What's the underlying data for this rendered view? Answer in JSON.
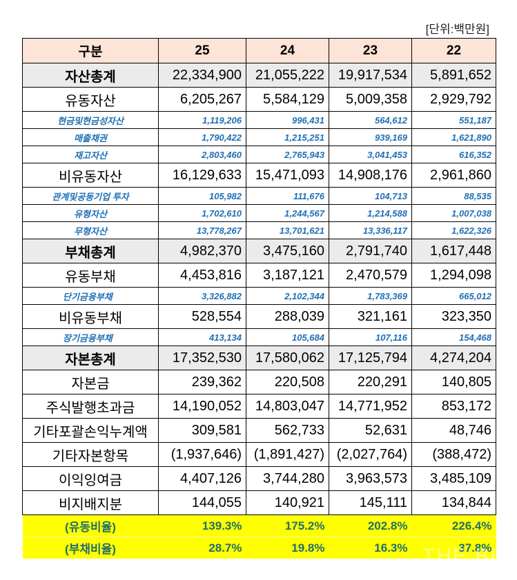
{
  "unit_label": "[단위:백만원]",
  "header": {
    "label": "구분",
    "years": [
      "25",
      "24",
      "23",
      "22"
    ]
  },
  "rows": [
    {
      "label": "자산총계",
      "values": [
        "22,334,900",
        "21,055,222",
        "19,917,534",
        "5,891,652"
      ]
    },
    {
      "label": "유동자산",
      "values": [
        "6,205,267",
        "5,584,129",
        "5,009,358",
        "2,929,792"
      ]
    },
    {
      "label": "현금및현금성자산",
      "values": [
        "1,119,206",
        "996,431",
        "564,612",
        "551,187"
      ]
    },
    {
      "label": "매출채권",
      "values": [
        "1,790,422",
        "1,215,251",
        "939,169",
        "1,621,890"
      ]
    },
    {
      "label": "재고자산",
      "values": [
        "2,803,460",
        "2,765,943",
        "3,041,453",
        "616,352"
      ]
    },
    {
      "label": "비유동자산",
      "values": [
        "16,129,633",
        "15,471,093",
        "14,908,176",
        "2,961,860"
      ]
    },
    {
      "label": "관계및공동기업 투자",
      "values": [
        "105,982",
        "111,676",
        "104,713",
        "88,535"
      ]
    },
    {
      "label": "유형자산",
      "values": [
        "1,702,610",
        "1,244,567",
        "1,214,588",
        "1,007,038"
      ]
    },
    {
      "label": "무형자산",
      "values": [
        "13,778,267",
        "13,701,621",
        "13,336,117",
        "1,622,326"
      ]
    },
    {
      "label": "부채총계",
      "values": [
        "4,982,370",
        "3,475,160",
        "2,791,740",
        "1,617,448"
      ]
    },
    {
      "label": "유동부채",
      "values": [
        "4,453,816",
        "3,187,121",
        "2,470,579",
        "1,294,098"
      ]
    },
    {
      "label": "단기금융부채",
      "values": [
        "3,326,882",
        "2,102,344",
        "1,783,369",
        "665,012"
      ]
    },
    {
      "label": "비유동부채",
      "values": [
        "528,554",
        "288,039",
        "321,161",
        "323,350"
      ]
    },
    {
      "label": "장기금융부채",
      "values": [
        "413,134",
        "105,684",
        "107,116",
        "154,468"
      ]
    },
    {
      "label": "자본총계",
      "values": [
        "17,352,530",
        "17,580,062",
        "17,125,794",
        "4,274,204"
      ]
    },
    {
      "label": "자본금",
      "values": [
        "239,362",
        "220,508",
        "220,291",
        "140,805"
      ]
    },
    {
      "label": "주식발행초과금",
      "values": [
        "14,190,052",
        "14,803,047",
        "14,771,952",
        "853,172"
      ]
    },
    {
      "label": "기타포괄손익누계액",
      "values": [
        "309,581",
        "562,733",
        "52,631",
        "48,746"
      ]
    },
    {
      "label": "기타자본항목",
      "values": [
        "(1,937,646)",
        "(1,891,427)",
        "(2,027,764)",
        "(388,472)"
      ]
    },
    {
      "label": "이익잉여금",
      "values": [
        "4,407,126",
        "3,744,280",
        "3,963,573",
        "3,485,109"
      ]
    },
    {
      "label": "비지배지분",
      "values": [
        "144,055",
        "140,921",
        "145,111",
        "134,844"
      ]
    }
  ],
  "ratios": [
    {
      "label": "(유동비율)",
      "values": [
        "139.3%",
        "175.2%",
        "202.8%",
        "226.4%"
      ]
    },
    {
      "label": "(부채비율)",
      "values": [
        "28.7%",
        "19.8%",
        "16.3%",
        "37.8%"
      ]
    }
  ],
  "colors": {
    "header_bg": "#fce4d6",
    "total_bg": "#ebebeb",
    "sub_text": "#1f6fb5",
    "ratio_bg": "#ffff00",
    "ratio_text": "#1f6f6f"
  },
  "watermark": "THE BIG"
}
